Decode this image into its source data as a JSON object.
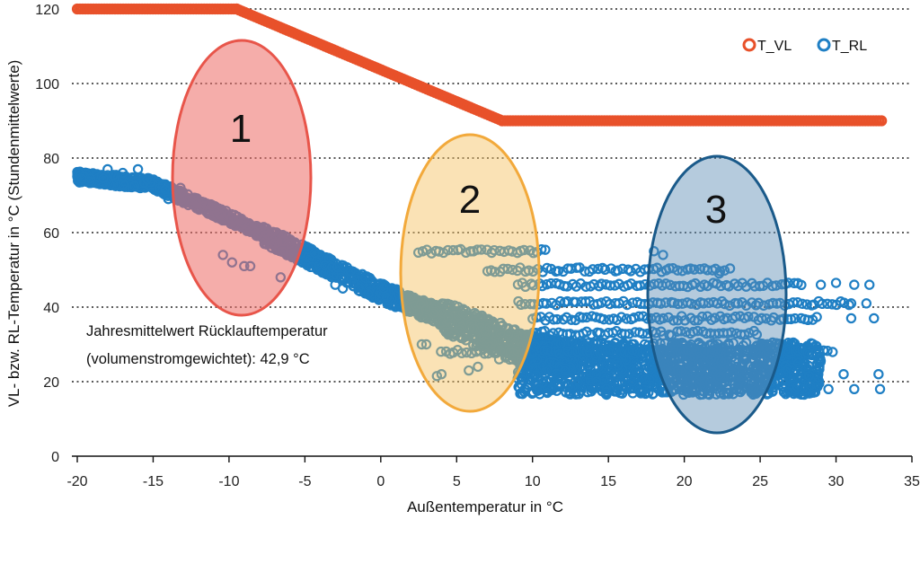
{
  "chart_data": {
    "type": "scatter",
    "xlabel": "Außentemperatur in °C",
    "ylabel": "VL- bzw. RL-Temperatur in °C  (Stundenmittelwerte)",
    "xlim": [
      -20,
      35
    ],
    "ylim": [
      0,
      120
    ],
    "x_ticks": [
      "-20",
      "-15",
      "-10",
      "-5",
      "0",
      "5",
      "10",
      "15",
      "20",
      "25",
      "30",
      "35"
    ],
    "y_ticks": [
      "0",
      "20",
      "40",
      "60",
      "80",
      "100",
      "120"
    ],
    "grid": "horizontal dotted",
    "legend_position": "top-right",
    "series": [
      {
        "name": "T_VL",
        "color": "#e8512a",
        "description_points": [
          [
            -20,
            120
          ],
          [
            -9.5,
            120
          ],
          [
            8,
            90
          ],
          [
            33,
            90
          ]
        ]
      },
      {
        "name": "T_RL",
        "color": "#1f7fc4",
        "description_points": [
          [
            -20,
            75
          ],
          [
            -15,
            73
          ],
          [
            -10,
            64
          ],
          [
            -5,
            54
          ],
          [
            0,
            44
          ],
          [
            5,
            36
          ],
          [
            10,
            28
          ],
          [
            15,
            24
          ],
          [
            20,
            22
          ],
          [
            25,
            22
          ],
          [
            30,
            22
          ],
          [
            33,
            20
          ]
        ]
      }
    ],
    "annotation": {
      "line1": "Jahresmittelwert Rücklauftemperatur",
      "line2": "(volumenstromgewichtet): 42,9 °C"
    },
    "zones": [
      {
        "label": "1",
        "color": "#e8554a"
      },
      {
        "label": "2",
        "color": "#f2a93b"
      },
      {
        "label": "3",
        "color": "#1a5a8a"
      }
    ]
  }
}
